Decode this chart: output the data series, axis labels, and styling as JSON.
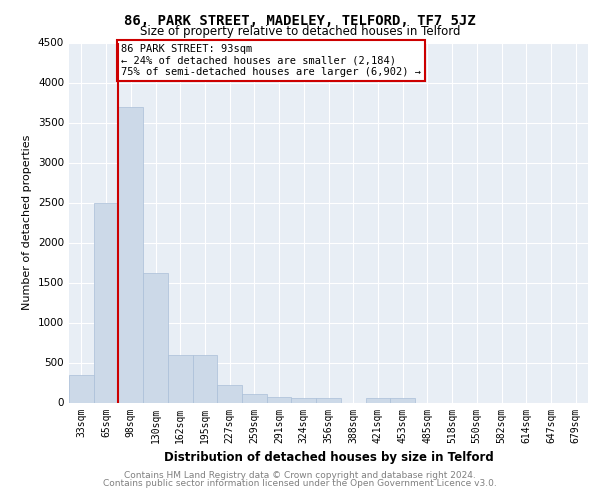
{
  "title": "86, PARK STREET, MADELEY, TELFORD, TF7 5JZ",
  "subtitle": "Size of property relative to detached houses in Telford",
  "xlabel": "Distribution of detached houses by size in Telford",
  "ylabel": "Number of detached properties",
  "categories": [
    "33sqm",
    "65sqm",
    "98sqm",
    "130sqm",
    "162sqm",
    "195sqm",
    "227sqm",
    "259sqm",
    "291sqm",
    "324sqm",
    "356sqm",
    "388sqm",
    "421sqm",
    "453sqm",
    "485sqm",
    "518sqm",
    "550sqm",
    "582sqm",
    "614sqm",
    "647sqm",
    "679sqm"
  ],
  "values": [
    350,
    2500,
    3700,
    1620,
    590,
    590,
    220,
    110,
    70,
    55,
    55,
    0,
    55,
    55,
    0,
    0,
    0,
    0,
    0,
    0,
    0
  ],
  "bar_color": "#ccd9e8",
  "bar_edgecolor": "#aabfd8",
  "vline_color": "#cc0000",
  "annotation_text": "86 PARK STREET: 93sqm\n← 24% of detached houses are smaller (2,184)\n75% of semi-detached houses are larger (6,902) →",
  "annotation_box_color": "#cc0000",
  "ylim": [
    0,
    4500
  ],
  "yticks": [
    0,
    500,
    1000,
    1500,
    2000,
    2500,
    3000,
    3500,
    4000,
    4500
  ],
  "footer_line1": "Contains HM Land Registry data © Crown copyright and database right 2024.",
  "footer_line2": "Contains public sector information licensed under the Open Government Licence v3.0.",
  "plot_bg_color": "#e8eef5"
}
